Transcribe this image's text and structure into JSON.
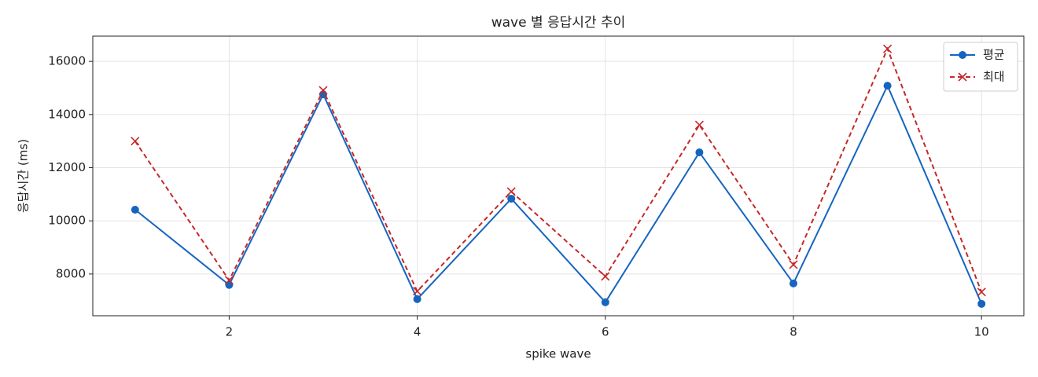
{
  "chart_data": {
    "type": "line",
    "title": "wave 별 응답시간 추이",
    "x_label": "spike wave",
    "y_label": "응답시간 (ms)",
    "x": [
      1,
      2,
      3,
      4,
      5,
      6,
      7,
      8,
      9,
      10
    ],
    "series": [
      {
        "name": "평균",
        "color": "#1565c0",
        "marker": "o",
        "linestyle": "solid",
        "values": [
          10420,
          7590,
          14760,
          7055,
          10834,
          6937,
          12576,
          7646,
          15085,
          6878
        ]
      },
      {
        "name": "최대",
        "color": "#c62828",
        "marker": "x",
        "linestyle": "dashed",
        "values": [
          13000,
          7764,
          14908,
          7350,
          11100,
          7911,
          13609,
          8354,
          16472,
          7321
        ]
      }
    ],
    "xlim": [
      0.55,
      10.45
    ],
    "ylim": [
      6430,
      16950
    ],
    "xticks": [
      2,
      4,
      6,
      8,
      10
    ],
    "yticks": [
      8000,
      10000,
      12000,
      14000,
      16000
    ],
    "grid": true,
    "legend": "upper right"
  }
}
